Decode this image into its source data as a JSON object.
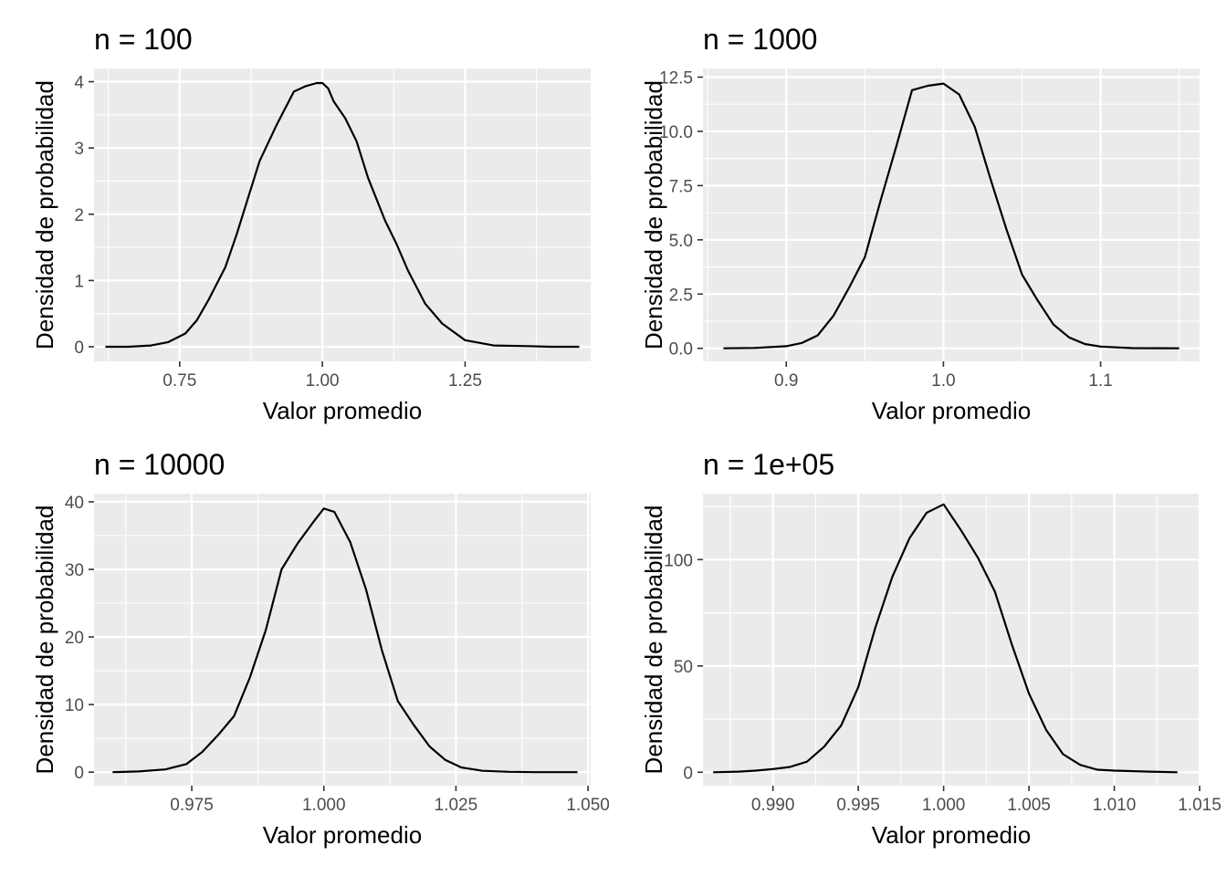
{
  "chart_data": [
    {
      "type": "line",
      "title": "n = 100",
      "xlabel": "Valor promedio",
      "ylabel": "Densidad de probabilidad",
      "xlim": [
        0.6,
        1.47
      ],
      "ylim": [
        -0.22,
        4.2
      ],
      "xticks": [
        0.75,
        1.0,
        1.25
      ],
      "xtick_labels": [
        "0.75",
        "1.00",
        "1.25"
      ],
      "yticks": [
        0,
        1,
        2,
        3,
        4
      ],
      "ytick_labels": [
        "0",
        "1",
        "2",
        "3",
        "4"
      ],
      "grid": true,
      "series": [
        {
          "x": [
            0.62,
            0.66,
            0.7,
            0.73,
            0.76,
            0.78,
            0.8,
            0.83,
            0.85,
            0.87,
            0.89,
            0.92,
            0.95,
            0.97,
            0.99,
            1.0,
            1.01,
            1.02,
            1.04,
            1.06,
            1.08,
            1.11,
            1.13,
            1.15,
            1.18,
            1.21,
            1.25,
            1.3,
            1.36,
            1.4,
            1.45
          ],
          "y": [
            0.0,
            0.0,
            0.02,
            0.07,
            0.2,
            0.4,
            0.7,
            1.2,
            1.7,
            2.25,
            2.8,
            3.35,
            3.85,
            3.93,
            3.98,
            3.98,
            3.9,
            3.7,
            3.45,
            3.1,
            2.55,
            1.9,
            1.55,
            1.15,
            0.65,
            0.35,
            0.1,
            0.02,
            0.01,
            0.0,
            0.0
          ]
        }
      ]
    },
    {
      "type": "line",
      "title": "n = 1000",
      "xlabel": "Valor promedio",
      "ylabel": "Densidad de probabilidad",
      "xlim": [
        0.847,
        1.163
      ],
      "ylim": [
        -0.6,
        12.9
      ],
      "xticks": [
        0.9,
        1.0,
        1.1
      ],
      "xtick_labels": [
        "0.9",
        "1.0",
        "1.1"
      ],
      "yticks": [
        0,
        2.5,
        5,
        7.5,
        10,
        12.5
      ],
      "ytick_labels": [
        "0.0",
        "2.5",
        "5.0",
        "7.5",
        "10.0",
        "12.5"
      ],
      "grid": true,
      "series": [
        {
          "x": [
            0.86,
            0.88,
            0.9,
            0.91,
            0.92,
            0.93,
            0.94,
            0.95,
            0.96,
            0.97,
            0.98,
            0.99,
            1.0,
            1.01,
            1.02,
            1.03,
            1.04,
            1.05,
            1.06,
            1.07,
            1.08,
            1.09,
            1.1,
            1.12,
            1.15
          ],
          "y": [
            0.0,
            0.02,
            0.1,
            0.25,
            0.6,
            1.5,
            2.8,
            4.2,
            6.8,
            9.3,
            11.9,
            12.1,
            12.2,
            11.7,
            10.2,
            7.8,
            5.5,
            3.4,
            2.2,
            1.1,
            0.5,
            0.2,
            0.08,
            0.01,
            0.0
          ]
        }
      ]
    },
    {
      "type": "line",
      "title": "n = 10000",
      "xlabel": "Valor promedio",
      "ylabel": "Densidad de probabilidad",
      "xlim": [
        0.9565,
        1.0505
      ],
      "ylim": [
        -2.0,
        41.2
      ],
      "xticks": [
        0.975,
        1.0,
        1.025,
        1.05
      ],
      "xtick_labels": [
        "0.975",
        "1.000",
        "1.025",
        "1.050"
      ],
      "yticks": [
        0,
        10,
        20,
        30,
        40
      ],
      "ytick_labels": [
        "0",
        "10",
        "20",
        "30",
        "40"
      ],
      "grid": true,
      "series": [
        {
          "x": [
            0.96,
            0.965,
            0.97,
            0.974,
            0.977,
            0.98,
            0.983,
            0.986,
            0.989,
            0.992,
            0.995,
            0.998,
            1.0,
            1.002,
            1.005,
            1.008,
            1.011,
            1.014,
            1.017,
            1.02,
            1.023,
            1.026,
            1.03,
            1.035,
            1.04,
            1.048
          ],
          "y": [
            0.0,
            0.1,
            0.4,
            1.2,
            3.0,
            5.5,
            8.3,
            14.0,
            21.0,
            30.0,
            33.8,
            37.0,
            39.0,
            38.5,
            34.0,
            27.0,
            18.0,
            10.5,
            7.0,
            3.8,
            1.8,
            0.7,
            0.2,
            0.05,
            0.0,
            0.0
          ]
        }
      ]
    },
    {
      "type": "line",
      "title": "n = 1e+05",
      "xlabel": "Valor promedio",
      "ylabel": "Densidad de probabilidad",
      "xlim": [
        0.9859,
        1.015
      ],
      "ylim": [
        -6.3,
        131.0
      ],
      "xticks": [
        0.99,
        0.995,
        1.0,
        1.005,
        1.01,
        1.015
      ],
      "xtick_labels": [
        "0.990",
        "0.995",
        "1.000",
        "1.005",
        "1.010",
        "1.015"
      ],
      "yticks": [
        0,
        50,
        100
      ],
      "ytick_labels": [
        "0",
        "50",
        "100"
      ],
      "grid": true,
      "series": [
        {
          "x": [
            0.9865,
            0.988,
            0.989,
            0.99,
            0.991,
            0.992,
            0.993,
            0.994,
            0.995,
            0.996,
            0.997,
            0.998,
            0.999,
            1.0,
            1.001,
            1.002,
            1.003,
            1.004,
            1.005,
            1.006,
            1.007,
            1.008,
            1.009,
            1.01,
            1.012,
            1.0137
          ],
          "y": [
            0.0,
            0.3,
            0.8,
            1.5,
            2.5,
            5.0,
            12.0,
            22.0,
            40.0,
            68.0,
            92.0,
            110.0,
            122.0,
            126.0,
            114.0,
            101.0,
            85.0,
            60.0,
            37.0,
            20.0,
            8.5,
            3.5,
            1.2,
            0.8,
            0.3,
            0.0
          ]
        }
      ]
    }
  ]
}
